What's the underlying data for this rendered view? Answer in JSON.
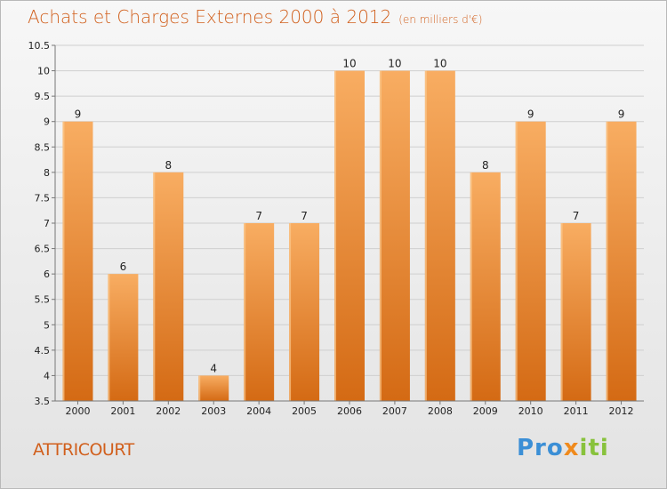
{
  "header": {
    "title": "Achats et Charges Externes 2000 à 2012",
    "subtitle": "(en milliers d'€)"
  },
  "footer": {
    "commune": "ATTRICOURT",
    "logo_parts": [
      "Pro",
      "x",
      "iti"
    ]
  },
  "colors": {
    "bar_light": "#f8ad62",
    "bar_dark": "#d46a14",
    "title": "#d15f1c",
    "grid": "#cfcfcf"
  },
  "chart_data": {
    "type": "bar",
    "title": "Achats et Charges Externes 2000 à 2012",
    "subtitle": "(en milliers d'€)",
    "xlabel": "",
    "ylabel": "",
    "categories": [
      "2000",
      "2001",
      "2002",
      "2003",
      "2004",
      "2005",
      "2006",
      "2007",
      "2008",
      "2009",
      "2010",
      "2011",
      "2012"
    ],
    "values": [
      9,
      6,
      8,
      4,
      7,
      7,
      10,
      10,
      10,
      8,
      9,
      7,
      9
    ],
    "data_labels": [
      "9",
      "6",
      "8",
      "4",
      "7",
      "7",
      "10",
      "10",
      "10",
      "8",
      "9",
      "7",
      "9"
    ],
    "ylim": [
      3.5,
      10.5
    ],
    "yticks": [
      "3.5",
      "4",
      "4.5",
      "5",
      "5.5",
      "6",
      "6.5",
      "7",
      "7.5",
      "8",
      "8.5",
      "9",
      "9.5",
      "10",
      "10.5"
    ],
    "grid": true,
    "legend": "none"
  }
}
